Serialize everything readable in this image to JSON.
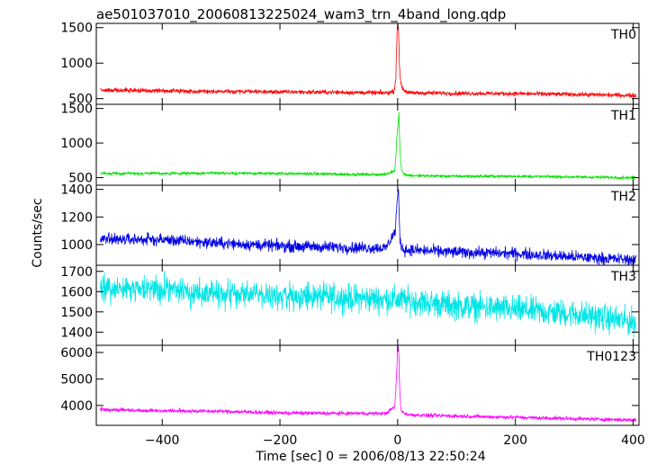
{
  "chart_data": {
    "type": "line",
    "title": "ae501037010_20060813225024_wam3_trn_4band_long.qdp",
    "xlabel": "Time [sec] 0 = 2006/08/13 22:50:24",
    "ylabel": "Counts/sec",
    "xlim": [
      -512,
      410
    ],
    "x_ticks": [
      -400,
      -200,
      0,
      200,
      400
    ],
    "x_tick_labels": [
      "−400",
      "−200",
      "0",
      "200",
      "400"
    ],
    "grid": false,
    "panels": [
      {
        "name": "TH0",
        "color": "#ff0000",
        "ylim": [
          420,
          1560
        ],
        "yticks": [
          500,
          1000,
          1500
        ],
        "ytick_labels": [
          "500",
          "1000",
          "1500"
        ],
        "x": [
          -505,
          -400,
          -300,
          -200,
          -100,
          -20,
          -6,
          -3,
          -2,
          -1,
          0,
          1,
          2,
          3,
          4,
          5,
          6,
          8,
          12,
          20,
          50,
          100,
          200,
          300,
          400,
          405
        ],
        "y": [
          620,
          610,
          600,
          595,
          590,
          580,
          600,
          800,
          1150,
          1450,
          1560,
          1500,
          1300,
          1000,
          850,
          750,
          700,
          650,
          610,
          580,
          580,
          575,
          570,
          560,
          545,
          545
        ],
        "noise": 22
      },
      {
        "name": "TH1",
        "color": "#00e000",
        "ylim": [
          390,
          1560
        ],
        "yticks": [
          500,
          1000,
          1500
        ],
        "ytick_labels": [
          "500",
          "1000",
          "1500"
        ],
        "x": [
          -505,
          -400,
          -300,
          -200,
          -100,
          -20,
          -5,
          -3,
          -1,
          0,
          1,
          2,
          3,
          4,
          5,
          6,
          8,
          12,
          20,
          50,
          100,
          200,
          300,
          400,
          405
        ],
        "y": [
          560,
          560,
          565,
          560,
          550,
          545,
          600,
          800,
          1150,
          1250,
          1300,
          1450,
          1150,
          900,
          750,
          650,
          580,
          550,
          530,
          525,
          520,
          520,
          510,
          500,
          500
        ],
        "noise": 15
      },
      {
        "name": "TH2",
        "color": "#0000e6",
        "ylim": [
          850,
          1430
        ],
        "yticks": [
          1000,
          1200,
          1400
        ],
        "ytick_labels": [
          "1000",
          "1200",
          "1400"
        ],
        "x": [
          -505,
          -400,
          -300,
          -200,
          -100,
          -20,
          -4,
          -2,
          0,
          1,
          2,
          3,
          4,
          6,
          10,
          20,
          50,
          100,
          200,
          300,
          400,
          405
        ],
        "y": [
          1040,
          1035,
          1010,
          990,
          980,
          975,
          1100,
          1250,
          1350,
          1400,
          1300,
          1150,
          1050,
          990,
          965,
          960,
          955,
          945,
          935,
          910,
          890,
          890
        ],
        "noise": 30
      },
      {
        "name": "TH3",
        "color": "#00e5e5",
        "ylim": [
          1335,
          1730
        ],
        "yticks": [
          1400,
          1500,
          1600,
          1700
        ],
        "ytick_labels": [
          "1400",
          "1500",
          "1600",
          "1700"
        ],
        "x": [
          -505,
          -400,
          -300,
          -200,
          -100,
          0,
          100,
          200,
          300,
          400,
          405
        ],
        "y": [
          1620,
          1610,
          1590,
          1580,
          1570,
          1560,
          1530,
          1510,
          1490,
          1450,
          1450
        ],
        "noise": 48
      },
      {
        "name": "TH0123",
        "color": "#ff00ff",
        "ylim": [
          3250,
          6270
        ],
        "yticks": [
          4000,
          5000,
          6000
        ],
        "ytick_labels": [
          "4000",
          "5000",
          "6000"
        ],
        "x": [
          -505,
          -400,
          -300,
          -200,
          -100,
          -20,
          -5,
          -3,
          -1,
          0,
          1,
          2,
          3,
          4,
          5,
          6,
          8,
          12,
          20,
          50,
          100,
          200,
          300,
          400,
          405
        ],
        "y": [
          3850,
          3800,
          3780,
          3720,
          3700,
          3700,
          3950,
          4600,
          5600,
          6150,
          6250,
          5900,
          5000,
          4400,
          4000,
          3850,
          3750,
          3700,
          3650,
          3620,
          3600,
          3550,
          3500,
          3450,
          3450
        ],
        "noise": 50
      }
    ]
  }
}
